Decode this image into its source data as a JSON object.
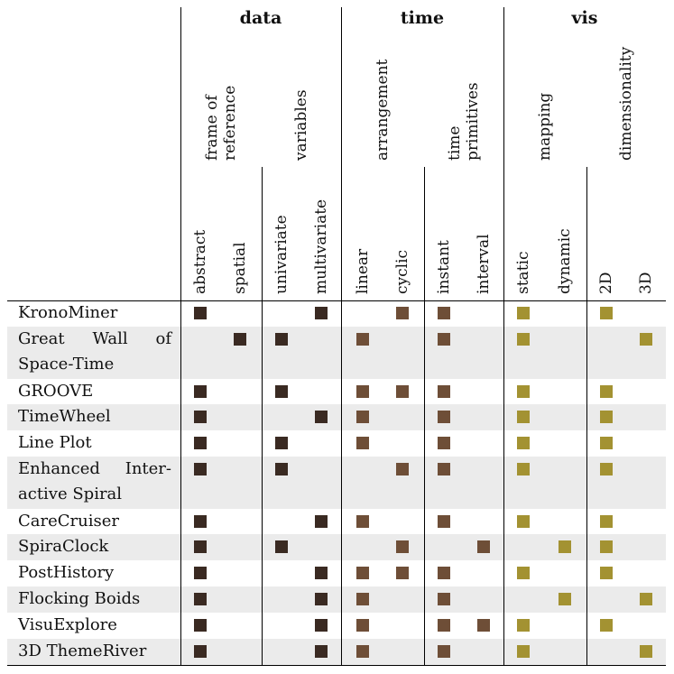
{
  "colors": {
    "data": "#3a2a22",
    "time": "#6e4e37",
    "vis": "#a39232"
  },
  "groups": [
    {
      "key": "data",
      "label": "data"
    },
    {
      "key": "time",
      "label": "time"
    },
    {
      "key": "vis",
      "label": "vis"
    }
  ],
  "categories": [
    {
      "group": "data",
      "lines": [
        "frame of",
        "reference"
      ]
    },
    {
      "group": "data",
      "lines": [
        "variables"
      ]
    },
    {
      "group": "time",
      "lines": [
        "arrangement"
      ]
    },
    {
      "group": "time",
      "lines": [
        "time",
        "primitives"
      ]
    },
    {
      "group": "vis",
      "lines": [
        "mapping"
      ]
    },
    {
      "group": "vis",
      "lines": [
        "dimensionality"
      ]
    }
  ],
  "columns": [
    {
      "label": "abstract",
      "group": "data"
    },
    {
      "label": "spatial",
      "group": "data"
    },
    {
      "label": "univariate",
      "group": "data"
    },
    {
      "label": "multivariate",
      "group": "data"
    },
    {
      "label": "linear",
      "group": "time"
    },
    {
      "label": "cyclic",
      "group": "time"
    },
    {
      "label": "instant",
      "group": "time"
    },
    {
      "label": "interval",
      "group": "time"
    },
    {
      "label": "static",
      "group": "vis"
    },
    {
      "label": "dynamic",
      "group": "vis"
    },
    {
      "label": "2D",
      "group": "vis"
    },
    {
      "label": "3D",
      "group": "vis"
    }
  ],
  "rows": [
    {
      "lines": [
        "KronoMiner"
      ],
      "marks": [
        1,
        0,
        0,
        1,
        0,
        1,
        1,
        0,
        1,
        0,
        1,
        0
      ]
    },
    {
      "lines": [
        "Great Wall of",
        "Space-Time"
      ],
      "marks": [
        0,
        1,
        1,
        0,
        1,
        0,
        1,
        0,
        1,
        0,
        0,
        1
      ]
    },
    {
      "lines": [
        "GROOVE"
      ],
      "marks": [
        1,
        0,
        1,
        0,
        1,
        1,
        1,
        0,
        1,
        0,
        1,
        0
      ]
    },
    {
      "lines": [
        "TimeWheel"
      ],
      "marks": [
        1,
        0,
        0,
        1,
        1,
        0,
        1,
        0,
        1,
        0,
        1,
        0
      ]
    },
    {
      "lines": [
        "Line Plot"
      ],
      "marks": [
        1,
        0,
        1,
        0,
        1,
        0,
        1,
        0,
        1,
        0,
        1,
        0
      ]
    },
    {
      "lines": [
        "Enhanced Inter-",
        "active Spiral"
      ],
      "marks": [
        1,
        0,
        1,
        0,
        0,
        1,
        1,
        0,
        1,
        0,
        1,
        0
      ]
    },
    {
      "lines": [
        "CareCruiser"
      ],
      "marks": [
        1,
        0,
        0,
        1,
        1,
        0,
        1,
        0,
        1,
        0,
        1,
        0
      ]
    },
    {
      "lines": [
        "SpiraClock"
      ],
      "marks": [
        1,
        0,
        1,
        0,
        0,
        1,
        0,
        1,
        0,
        1,
        1,
        0
      ]
    },
    {
      "lines": [
        "PostHistory"
      ],
      "marks": [
        1,
        0,
        0,
        1,
        1,
        1,
        1,
        0,
        1,
        0,
        1,
        0
      ]
    },
    {
      "lines": [
        "Flocking Boids"
      ],
      "marks": [
        1,
        0,
        0,
        1,
        1,
        0,
        1,
        0,
        0,
        1,
        0,
        1
      ]
    },
    {
      "lines": [
        "VisuExplore"
      ],
      "marks": [
        1,
        0,
        0,
        1,
        1,
        0,
        1,
        1,
        1,
        0,
        1,
        0
      ]
    },
    {
      "lines": [
        "3D ThemeRiver"
      ],
      "marks": [
        1,
        0,
        0,
        1,
        1,
        0,
        1,
        0,
        1,
        0,
        0,
        1
      ]
    }
  ]
}
